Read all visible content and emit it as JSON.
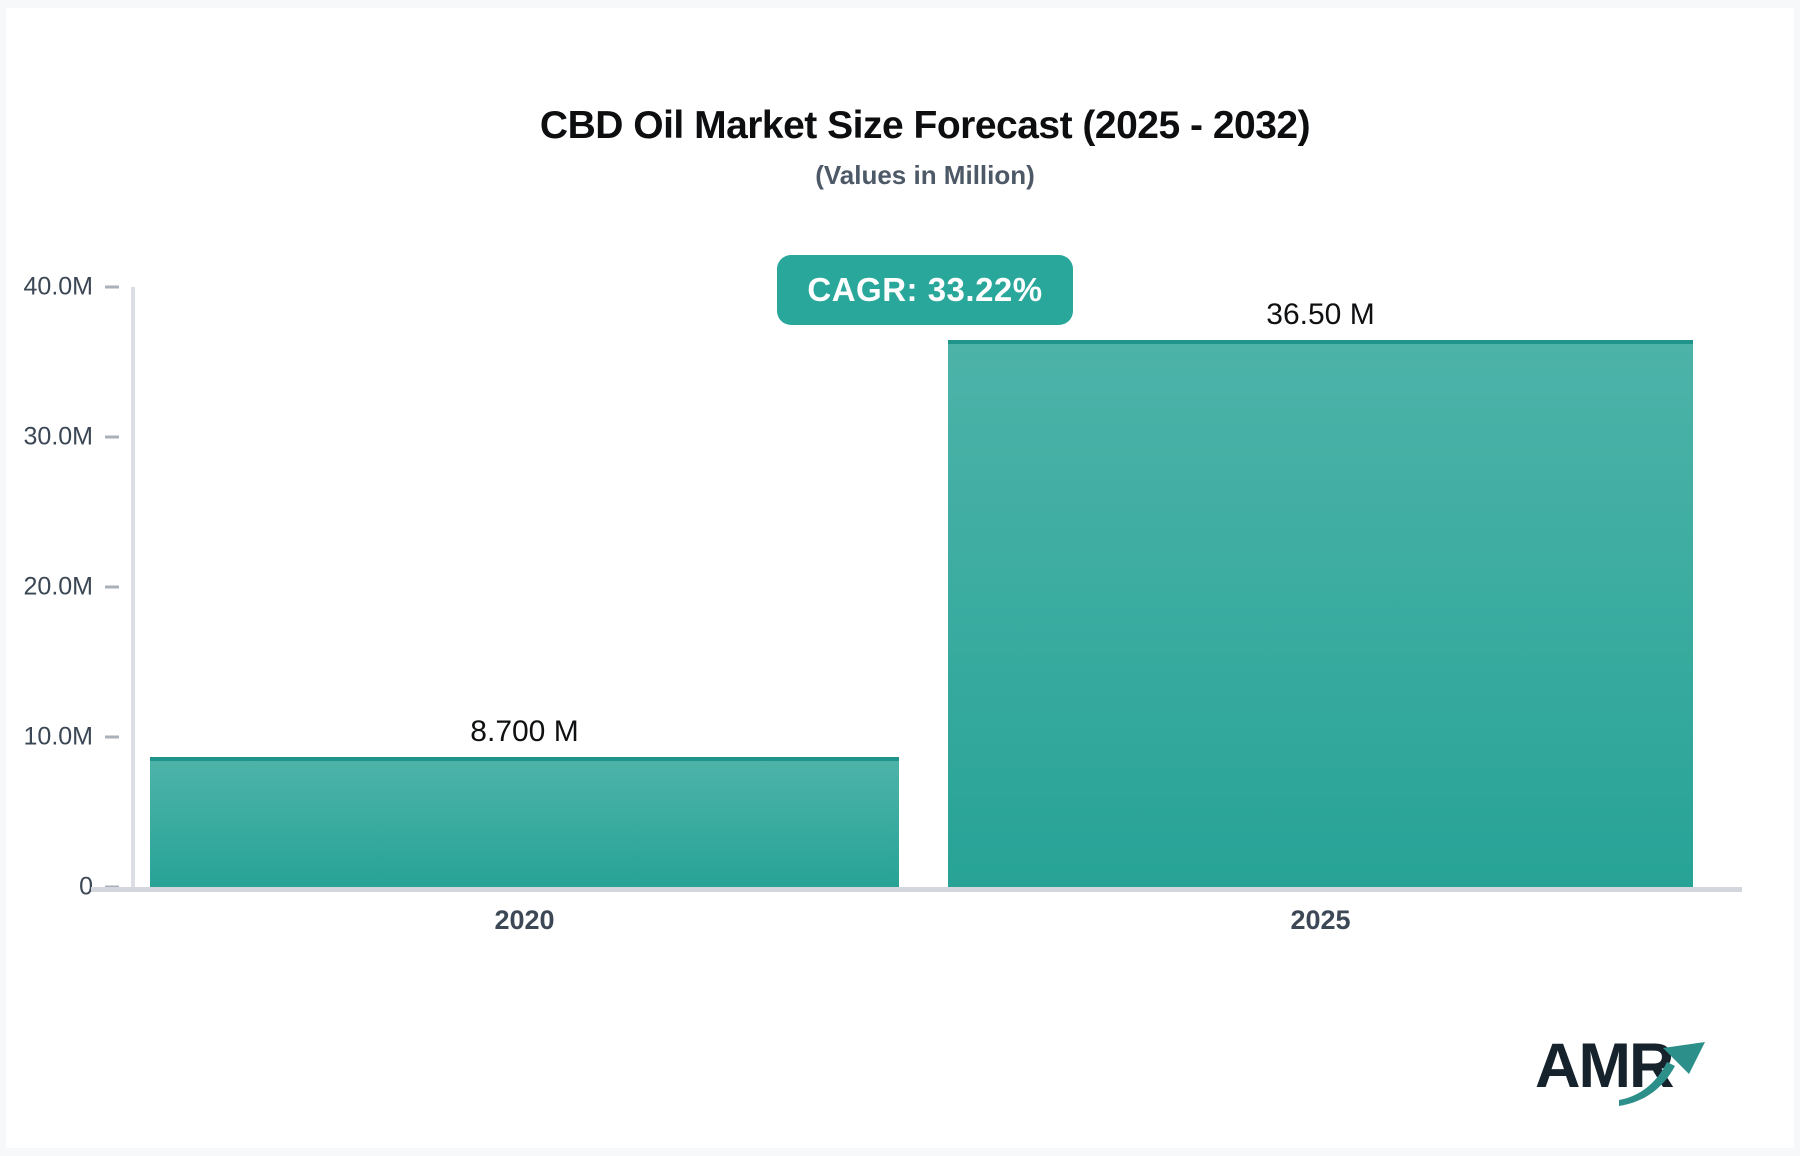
{
  "page": {
    "background": "#f7f8fa",
    "card_background": "#ffffff"
  },
  "chart_data": {
    "type": "bar",
    "title": "CBD Oil Market Size Forecast (2025 - 2032)",
    "subtitle": "(Values in Million)",
    "annotation": "CAGR: 33.22%",
    "annotation_bg": "#2aa79b",
    "categories": [
      "2020",
      "2025"
    ],
    "values": [
      8.7,
      36.5
    ],
    "value_labels": [
      "8.700 M",
      "36.50 M"
    ],
    "ylim": [
      0,
      40
    ],
    "yticks": [
      {
        "value": 40,
        "label": "40.0M"
      },
      {
        "value": 30,
        "label": "30.0M"
      },
      {
        "value": 20,
        "label": "20.0M"
      },
      {
        "value": 10,
        "label": "10.0M"
      },
      {
        "value": 0,
        "label": "0"
      }
    ],
    "grid": false,
    "legend": false,
    "bar_color_top": "#4db3a9",
    "bar_color_bottom": "#27a396",
    "bar_top_edge": "#1f948a",
    "axis_line_color": "#dbdee3",
    "baseline_color": "#d3d7dd",
    "tick_label_color": "#3b4754"
  },
  "logo": {
    "text": "AMR",
    "icon": "trend-up-arrow-icon",
    "text_color": "#16222c",
    "arrow_color": "#2d8f89"
  }
}
